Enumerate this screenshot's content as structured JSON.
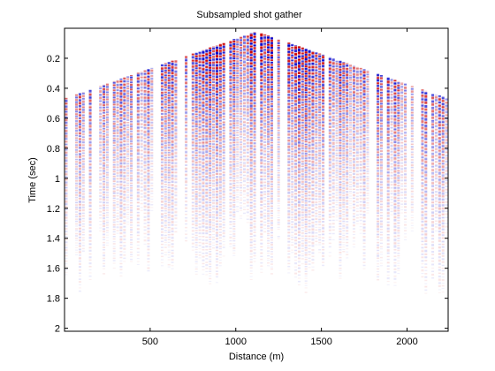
{
  "chart_data": {
    "type": "heatmap",
    "title": "Subsampled shot gather",
    "xlabel": "Distance (m)",
    "ylabel": "Time (sec)",
    "xlim": [
      0,
      2240
    ],
    "ylim": [
      0.0,
      2.02
    ],
    "y_reversed": true,
    "grid": false,
    "legend": "none",
    "x_ticks": [
      500,
      1000,
      1500,
      2000
    ],
    "y_ticks": [
      0.2,
      0.4,
      0.6,
      0.8,
      1,
      1.2,
      1.4,
      1.6,
      1.8,
      2
    ],
    "colormap": {
      "negative": "#0000cc",
      "zero": "#ffffff",
      "positive": "#cc0000"
    },
    "source_offset_m": 1120,
    "direct_arrival": {
      "apex_time_sec": 0.02,
      "velocity_m_per_sec": 2500
    },
    "trace_spacing_m": 20,
    "sample_interval_sec": 0.004
  }
}
